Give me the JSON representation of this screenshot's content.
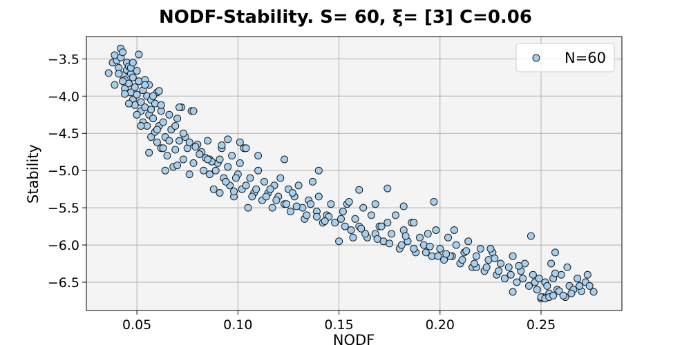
{
  "chart_data": {
    "type": "scatter",
    "title": "NODF-Stability. S= 60, ξ= [3] C=0.06",
    "xlabel": "NODF",
    "ylabel": "Stability",
    "xlim": [
      0.025,
      0.29
    ],
    "ylim": [
      -6.88,
      -3.2
    ],
    "xticks": [
      0.05,
      0.1,
      0.15,
      0.2,
      0.25
    ],
    "xtick_labels": [
      "0.05",
      "0.10",
      "0.15",
      "0.20",
      "0.25"
    ],
    "yticks": [
      -3.5,
      -4.0,
      -4.5,
      -5.0,
      -5.5,
      -6.0,
      -6.5
    ],
    "ytick_labels": [
      "−3.5",
      "−4.0",
      "−4.5",
      "−5.0",
      "−5.5",
      "−6.0",
      "−6.5"
    ],
    "grid": true,
    "legend": {
      "placement": "top-right"
    },
    "colors": {
      "marker_fill": "#a6cfee",
      "marker_edge": "#1a1a1a",
      "plot_bg": "#f4f4f4",
      "grid": "#b0b0b0"
    },
    "series": [
      {
        "name": "N=60",
        "points": [
          [
            0.036,
            -3.69
          ],
          [
            0.038,
            -3.55
          ],
          [
            0.039,
            -3.85
          ],
          [
            0.04,
            -3.52
          ],
          [
            0.041,
            -3.62
          ],
          [
            0.042,
            -3.48
          ],
          [
            0.042,
            -3.36
          ],
          [
            0.043,
            -3.41
          ],
          [
            0.043,
            -3.72
          ],
          [
            0.044,
            -3.78
          ],
          [
            0.044,
            -3.9
          ],
          [
            0.045,
            -3.55
          ],
          [
            0.045,
            -3.65
          ],
          [
            0.046,
            -3.6
          ],
          [
            0.046,
            -3.83
          ],
          [
            0.047,
            -3.7
          ],
          [
            0.047,
            -3.95
          ],
          [
            0.048,
            -3.75
          ],
          [
            0.048,
            -4.05
          ],
          [
            0.049,
            -3.88
          ],
          [
            0.049,
            -4.12
          ],
          [
            0.05,
            -3.66
          ],
          [
            0.05,
            -3.98
          ],
          [
            0.051,
            -3.44
          ],
          [
            0.051,
            -3.8
          ],
          [
            0.052,
            -4.08
          ],
          [
            0.052,
            -4.2
          ],
          [
            0.053,
            -3.92
          ],
          [
            0.053,
            -4.35
          ],
          [
            0.054,
            -3.78
          ],
          [
            0.054,
            -4.15
          ],
          [
            0.055,
            -4.0
          ],
          [
            0.055,
            -4.4
          ],
          [
            0.056,
            -3.85
          ],
          [
            0.056,
            -4.25
          ],
          [
            0.057,
            -4.05
          ],
          [
            0.057,
            -4.55
          ],
          [
            0.058,
            -4.3
          ],
          [
            0.059,
            -4.1
          ],
          [
            0.059,
            -4.48
          ],
          [
            0.06,
            -3.95
          ],
          [
            0.06,
            -4.62
          ],
          [
            0.061,
            -4.4
          ],
          [
            0.062,
            -4.2
          ],
          [
            0.062,
            -4.7
          ],
          [
            0.063,
            -4.35
          ],
          [
            0.064,
            -4.55
          ],
          [
            0.065,
            -4.8
          ],
          [
            0.066,
            -4.6
          ],
          [
            0.067,
            -4.45
          ],
          [
            0.068,
            -4.95
          ],
          [
            0.069,
            -4.72
          ],
          [
            0.07,
            -4.3
          ],
          [
            0.071,
            -4.6
          ],
          [
            0.072,
            -4.15
          ],
          [
            0.073,
            -4.85
          ],
          [
            0.074,
            -4.55
          ],
          [
            0.075,
            -4.7
          ],
          [
            0.076,
            -5.05
          ],
          [
            0.077,
            -4.2
          ],
          [
            0.078,
            -4.9
          ],
          [
            0.08,
            -4.65
          ],
          [
            0.082,
            -4.75
          ],
          [
            0.083,
            -5.0
          ],
          [
            0.085,
            -4.6
          ],
          [
            0.086,
            -4.85
          ],
          [
            0.088,
            -5.25
          ],
          [
            0.09,
            -4.9
          ],
          [
            0.091,
            -5.3
          ],
          [
            0.092,
            -4.7
          ],
          [
            0.093,
            -5.1
          ],
          [
            0.095,
            -4.95
          ],
          [
            0.096,
            -5.2
          ],
          [
            0.097,
            -4.8
          ],
          [
            0.098,
            -5.35
          ],
          [
            0.1,
            -5.05
          ],
          [
            0.101,
            -4.9
          ],
          [
            0.102,
            -5.25
          ],
          [
            0.103,
            -4.7
          ],
          [
            0.105,
            -5.5
          ],
          [
            0.106,
            -5.1
          ],
          [
            0.108,
            -5.3
          ],
          [
            0.11,
            -5.0
          ],
          [
            0.112,
            -5.4
          ],
          [
            0.113,
            -5.15
          ],
          [
            0.115,
            -5.3
          ],
          [
            0.117,
            -5.5
          ],
          [
            0.118,
            -5.2
          ],
          [
            0.12,
            -5.35
          ],
          [
            0.121,
            -5.1
          ],
          [
            0.123,
            -5.45
          ],
          [
            0.125,
            -5.25
          ],
          [
            0.126,
            -5.55
          ],
          [
            0.128,
            -5.35
          ],
          [
            0.13,
            -5.2
          ],
          [
            0.132,
            -5.5
          ],
          [
            0.133,
            -5.65
          ],
          [
            0.135,
            -5.4
          ],
          [
            0.137,
            -5.15
          ],
          [
            0.139,
            -5.55
          ],
          [
            0.14,
            -5.35
          ],
          [
            0.142,
            -5.7
          ],
          [
            0.144,
            -5.6
          ],
          [
            0.146,
            -5.45
          ],
          [
            0.148,
            -5.7
          ],
          [
            0.15,
            -5.95
          ],
          [
            0.152,
            -5.55
          ],
          [
            0.154,
            -5.45
          ],
          [
            0.156,
            -5.8
          ],
          [
            0.158,
            -5.65
          ],
          [
            0.16,
            -5.75
          ],
          [
            0.162,
            -5.5
          ],
          [
            0.164,
            -5.9
          ],
          [
            0.166,
            -5.6
          ],
          [
            0.168,
            -5.85
          ],
          [
            0.17,
            -5.75
          ],
          [
            0.172,
            -5.95
          ],
          [
            0.174,
            -5.7
          ],
          [
            0.176,
            -5.85
          ],
          [
            0.178,
            -5.6
          ],
          [
            0.18,
            -6.05
          ],
          [
            0.182,
            -5.8
          ],
          [
            0.184,
            -5.95
          ],
          [
            0.186,
            -5.7
          ],
          [
            0.188,
            -6.1
          ],
          [
            0.19,
            -5.9
          ],
          [
            0.192,
            -6.0
          ],
          [
            0.194,
            -5.85
          ],
          [
            0.196,
            -6.15
          ],
          [
            0.198,
            -5.8
          ],
          [
            0.2,
            -6.05
          ],
          [
            0.202,
            -6.2
          ],
          [
            0.204,
            -5.9
          ],
          [
            0.206,
            -6.15
          ],
          [
            0.208,
            -6.0
          ],
          [
            0.21,
            -6.25
          ],
          [
            0.212,
            -6.1
          ],
          [
            0.214,
            -5.95
          ],
          [
            0.216,
            -6.3
          ],
          [
            0.218,
            -6.15
          ],
          [
            0.22,
            -6.05
          ],
          [
            0.222,
            -6.35
          ],
          [
            0.224,
            -6.2
          ],
          [
            0.226,
            -6.1
          ],
          [
            0.228,
            -6.4
          ],
          [
            0.23,
            -6.25
          ],
          [
            0.232,
            -6.45
          ],
          [
            0.234,
            -6.3
          ],
          [
            0.236,
            -6.15
          ],
          [
            0.238,
            -6.5
          ],
          [
            0.24,
            -6.35
          ],
          [
            0.242,
            -6.25
          ],
          [
            0.244,
            -6.55
          ],
          [
            0.246,
            -6.4
          ],
          [
            0.248,
            -6.6
          ],
          [
            0.25,
            -6.72
          ],
          [
            0.251,
            -6.7
          ],
          [
            0.252,
            -6.5
          ],
          [
            0.254,
            -6.65
          ],
          [
            0.256,
            -6.45
          ],
          [
            0.258,
            -6.6
          ],
          [
            0.26,
            -6.4
          ],
          [
            0.262,
            -6.7
          ],
          [
            0.264,
            -6.55
          ],
          [
            0.266,
            -6.6
          ],
          [
            0.268,
            -6.45
          ],
          [
            0.27,
            -6.62
          ],
          [
            0.272,
            -6.5
          ],
          [
            0.274,
            -6.55
          ],
          [
            0.276,
            -6.63
          ],
          [
            0.236,
            -6.63
          ],
          [
            0.218,
            -6.3
          ],
          [
            0.197,
            -5.42
          ],
          [
            0.174,
            -5.24
          ],
          [
            0.16,
            -5.26
          ],
          [
            0.14,
            -5.0
          ],
          [
            0.11,
            -4.8
          ],
          [
            0.104,
            -4.7
          ],
          [
            0.095,
            -4.58
          ],
          [
            0.078,
            -4.2
          ],
          [
            0.071,
            -4.15
          ],
          [
            0.056,
            -4.76
          ],
          [
            0.05,
            -4.25
          ],
          [
            0.046,
            -4.1
          ],
          [
            0.047,
            -3.62
          ],
          [
            0.043,
            -3.8
          ],
          [
            0.041,
            -3.7
          ],
          [
            0.039,
            -3.45
          ],
          [
            0.054,
            -3.85
          ],
          [
            0.058,
            -4.0
          ],
          [
            0.062,
            -4.12
          ],
          [
            0.066,
            -4.25
          ],
          [
            0.069,
            -4.4
          ],
          [
            0.073,
            -4.5
          ],
          [
            0.076,
            -4.62
          ],
          [
            0.081,
            -4.78
          ],
          [
            0.084,
            -4.83
          ],
          [
            0.087,
            -4.88
          ],
          [
            0.089,
            -5.0
          ],
          [
            0.094,
            -5.15
          ],
          [
            0.099,
            -5.1
          ],
          [
            0.104,
            -5.2
          ],
          [
            0.109,
            -5.25
          ],
          [
            0.114,
            -5.35
          ],
          [
            0.119,
            -5.4
          ],
          [
            0.124,
            -5.45
          ],
          [
            0.129,
            -5.48
          ],
          [
            0.134,
            -5.6
          ],
          [
            0.139,
            -5.62
          ],
          [
            0.145,
            -5.62
          ],
          [
            0.151,
            -5.65
          ],
          [
            0.157,
            -5.9
          ],
          [
            0.163,
            -5.85
          ],
          [
            0.169,
            -5.92
          ],
          [
            0.175,
            -5.98
          ],
          [
            0.181,
            -6.0
          ],
          [
            0.187,
            -6.05
          ],
          [
            0.193,
            -6.1
          ],
          [
            0.199,
            -6.15
          ],
          [
            0.205,
            -6.15
          ],
          [
            0.211,
            -6.2
          ],
          [
            0.217,
            -6.25
          ],
          [
            0.223,
            -6.3
          ],
          [
            0.229,
            -6.35
          ],
          [
            0.235,
            -6.4
          ],
          [
            0.241,
            -6.45
          ],
          [
            0.247,
            -6.5
          ],
          [
            0.253,
            -6.55
          ],
          [
            0.259,
            -6.62
          ],
          [
            0.265,
            -6.65
          ],
          [
            0.245,
            -5.88
          ],
          [
            0.225,
            -6.05
          ],
          [
            0.207,
            -5.8
          ],
          [
            0.187,
            -5.7
          ],
          [
            0.182,
            -5.48
          ],
          [
            0.168,
            -5.45
          ],
          [
            0.155,
            -5.42
          ],
          [
            0.123,
            -4.85
          ],
          [
            0.101,
            -4.62
          ],
          [
            0.092,
            -4.66
          ],
          [
            0.085,
            -4.85
          ],
          [
            0.064,
            -5.0
          ],
          [
            0.06,
            -4.45
          ],
          [
            0.052,
            -4.4
          ],
          [
            0.048,
            -3.55
          ],
          [
            0.044,
            -3.97
          ],
          [
            0.057,
            -4.18
          ],
          [
            0.061,
            -3.93
          ],
          [
            0.063,
            -4.7
          ],
          [
            0.07,
            -4.93
          ],
          [
            0.079,
            -4.68
          ],
          [
            0.086,
            -5.05
          ],
          [
            0.091,
            -4.85
          ],
          [
            0.098,
            -5.28
          ],
          [
            0.107,
            -5.35
          ],
          [
            0.116,
            -5.25
          ],
          [
            0.127,
            -5.3
          ],
          [
            0.136,
            -5.45
          ],
          [
            0.143,
            -5.68
          ],
          [
            0.153,
            -5.75
          ],
          [
            0.161,
            -5.78
          ],
          [
            0.171,
            -5.75
          ],
          [
            0.183,
            -5.88
          ],
          [
            0.195,
            -6.02
          ],
          [
            0.203,
            -6.12
          ],
          [
            0.213,
            -6.08
          ],
          [
            0.227,
            -6.18
          ],
          [
            0.239,
            -6.28
          ],
          [
            0.249,
            -6.45
          ],
          [
            0.257,
            -6.38
          ],
          [
            0.263,
            -6.3
          ],
          [
            0.269,
            -6.55
          ],
          [
            0.273,
            -6.4
          ],
          [
            0.255,
            -6.25
          ],
          [
            0.257,
            -6.1
          ],
          [
            0.261,
            -6.68
          ],
          [
            0.25,
            -6.7
          ],
          [
            0.252,
            -6.72
          ],
          [
            0.254,
            -6.7
          ],
          [
            0.256,
            -6.68
          ]
        ]
      }
    ]
  }
}
